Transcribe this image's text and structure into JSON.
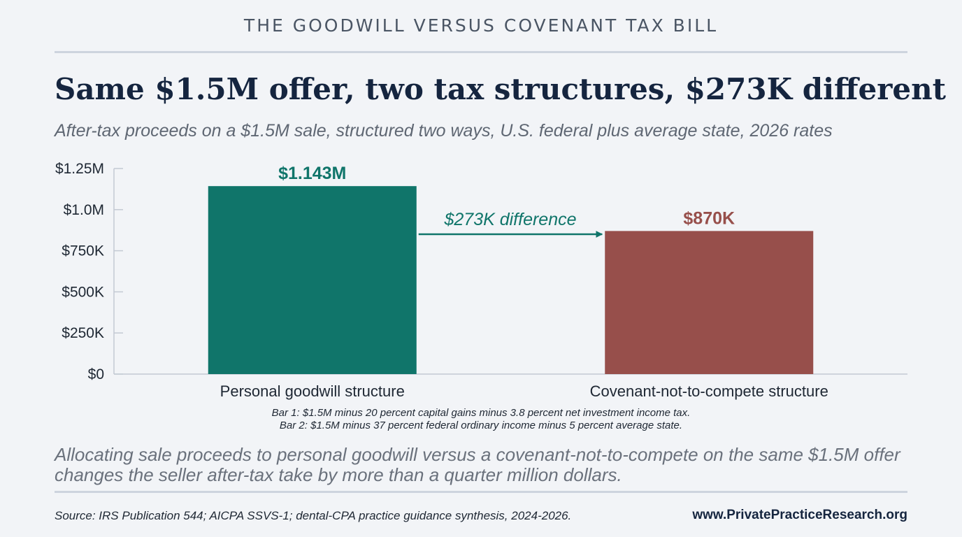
{
  "header": {
    "kicker": "THE GOODWILL VERSUS COVENANT TAX BILL",
    "headline": "Same $1.5M offer, two tax structures, $273K different",
    "subtitle": "After-tax proceeds on a $1.5M sale, structured two ways, U.S. federal plus average state, 2026 rates"
  },
  "chart_data": {
    "type": "bar",
    "categories": [
      "Personal goodwill structure",
      "Covenant-not-to-compete structure"
    ],
    "values": [
      1143000,
      870000
    ],
    "value_labels": [
      "$1.143M",
      "$870K"
    ],
    "bar_colors": [
      "#10756a",
      "#974f4b"
    ],
    "label_colors": [
      "#10756a",
      "#974f4b"
    ],
    "ylim": [
      0,
      1250000
    ],
    "yticks": [
      0,
      250000,
      500000,
      750000,
      1000000,
      1250000
    ],
    "ytick_labels": [
      "$0",
      "$250K",
      "$500K",
      "$750K",
      "$1.0M",
      "$1.25M"
    ],
    "grid": false,
    "annotation": {
      "text": "$273K difference",
      "color": "#10756a",
      "from_category": 0,
      "to_category": 1
    },
    "title": "",
    "xlabel": "",
    "ylabel": ""
  },
  "notes": {
    "line1": "Bar 1: $1.5M minus 20 percent capital gains minus 3.8 percent net investment income tax.",
    "line2": "Bar 2: $1.5M minus 37 percent federal ordinary income minus 5 percent average state."
  },
  "takeaway": {
    "line1": "Allocating sale proceeds to personal goodwill versus a covenant-not-to-compete on the same $1.5M offer",
    "line2": "changes the seller after-tax take by more than a quarter million dollars."
  },
  "footer": {
    "source": "Source: IRS Publication 544; AICPA SSVS-1; dental-CPA practice guidance synthesis, 2024-2026.",
    "site": "www.PrivatePracticeResearch.org"
  }
}
